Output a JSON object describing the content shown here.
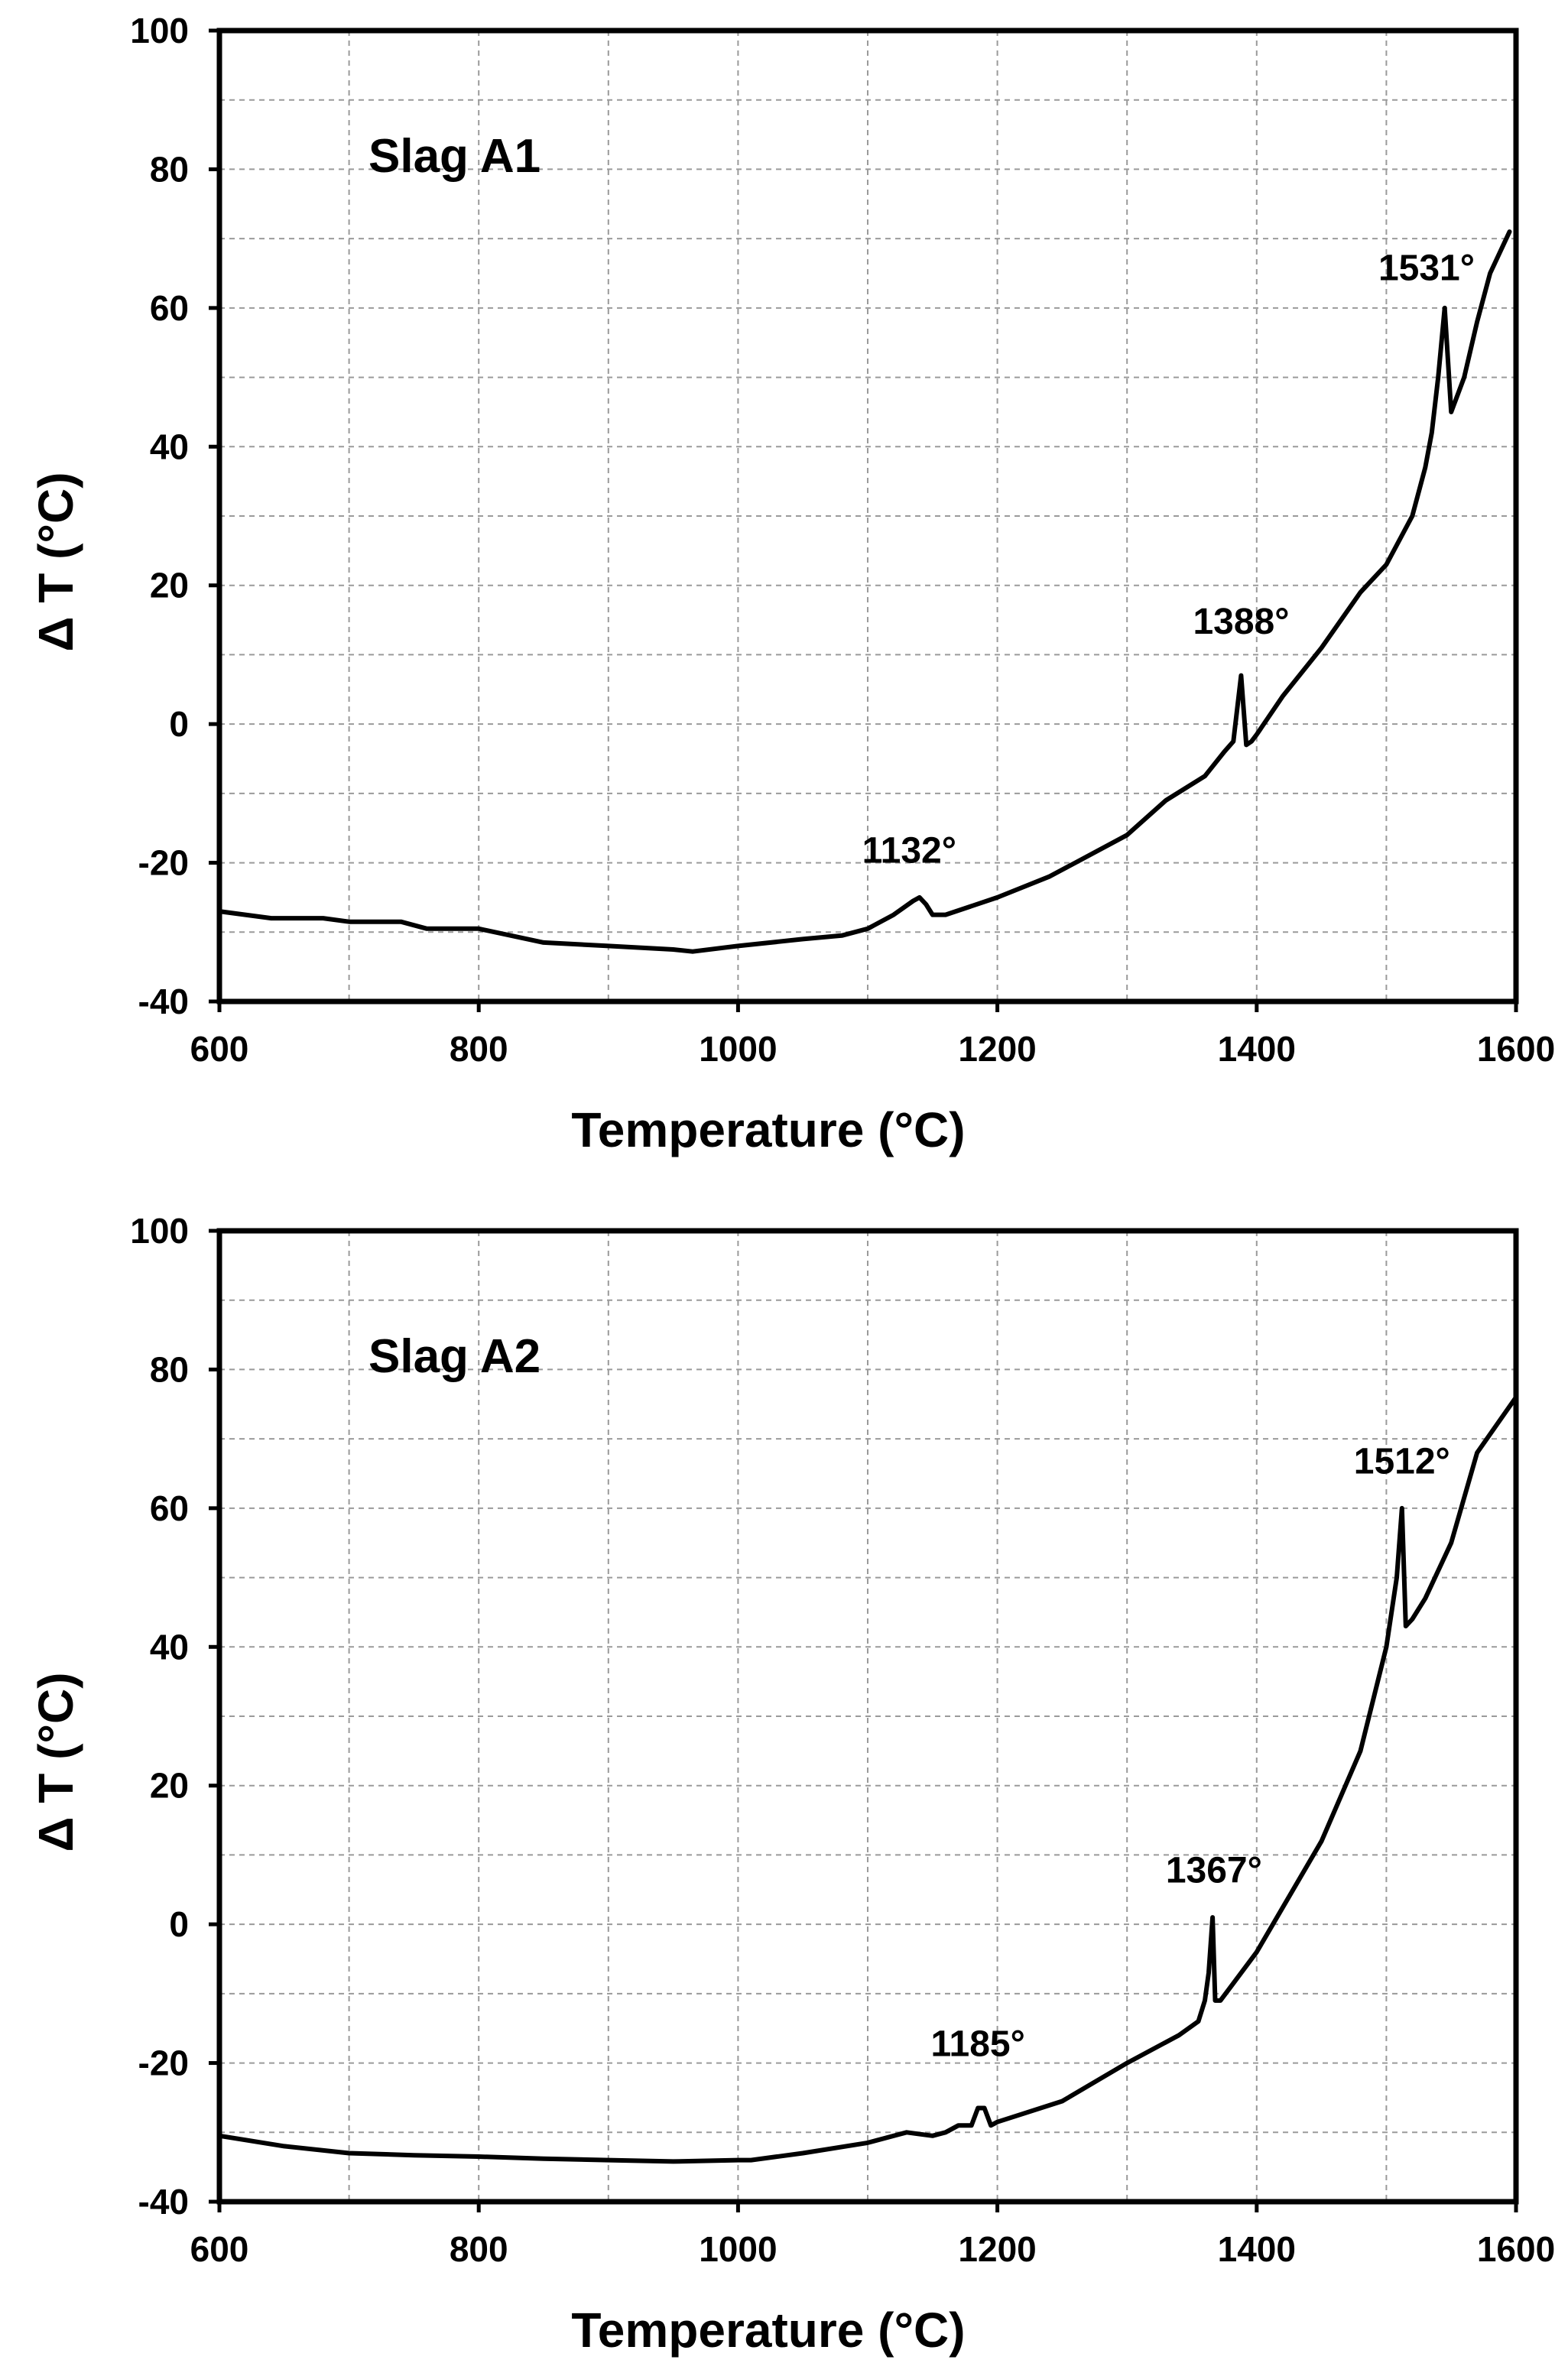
{
  "chart_data": [
    {
      "type": "line",
      "title": "Slag A1",
      "xlabel": "Temperature (°C)",
      "ylabel": "Δ T  (°C)",
      "xlim": [
        600,
        1600
      ],
      "ylim": [
        -40,
        100
      ],
      "xticks": [
        600,
        800,
        1000,
        1200,
        1400,
        1600
      ],
      "yticks": [
        -40,
        -20,
        0,
        20,
        40,
        60,
        80,
        100
      ],
      "grid": true,
      "series": [
        {
          "x": [
            600,
            640,
            680,
            700,
            740,
            760,
            800,
            850,
            900,
            950,
            965,
            1000,
            1050,
            1080,
            1100,
            1120,
            1135,
            1140,
            1145,
            1150,
            1160,
            1200,
            1240,
            1260,
            1300,
            1330,
            1360,
            1375,
            1382,
            1388,
            1392,
            1396,
            1400,
            1420,
            1450,
            1480,
            1500,
            1520,
            1530,
            1535,
            1540,
            1545,
            1550,
            1560,
            1570,
            1580,
            1595
          ],
          "y": [
            -27,
            -28,
            -28,
            -28.5,
            -28.5,
            -29.5,
            -29.5,
            -31.5,
            -32,
            -32.5,
            -32.8,
            -32,
            -31,
            -30.5,
            -29.5,
            -27.5,
            -25.5,
            -25,
            -26,
            -27.5,
            -27.5,
            -25,
            -22,
            -20,
            -16,
            -11,
            -7.5,
            -4,
            -2.5,
            7,
            -3,
            -2.5,
            -1.5,
            4,
            11,
            19,
            23,
            30,
            37,
            42,
            50,
            60,
            45,
            50,
            58,
            65,
            71
          ]
        }
      ],
      "annotations": [
        {
          "text": "1132°",
          "x": 1132,
          "y": -20
        },
        {
          "text": "1388°",
          "x": 1388,
          "y": 13
        },
        {
          "text": "1531°",
          "x": 1531,
          "y": 64
        }
      ]
    },
    {
      "type": "line",
      "title": "Slag A2",
      "xlabel": "Temperature (°C)",
      "ylabel": "Δ T  (°C)",
      "xlim": [
        600,
        1600
      ],
      "ylim": [
        -40,
        100
      ],
      "xticks": [
        600,
        800,
        1000,
        1200,
        1400,
        1600
      ],
      "yticks": [
        -40,
        -20,
        0,
        20,
        40,
        60,
        80,
        100
      ],
      "grid": true,
      "series": [
        {
          "x": [
            600,
            650,
            700,
            750,
            800,
            850,
            900,
            950,
            1000,
            1010,
            1050,
            1100,
            1130,
            1150,
            1160,
            1170,
            1180,
            1185,
            1190,
            1195,
            1200,
            1250,
            1300,
            1340,
            1355,
            1360,
            1363,
            1366,
            1368,
            1372,
            1380,
            1400,
            1450,
            1480,
            1500,
            1508,
            1512,
            1515,
            1520,
            1530,
            1550,
            1570,
            1600
          ],
          "y": [
            -30.5,
            -32,
            -33,
            -33.3,
            -33.5,
            -33.8,
            -34,
            -34.2,
            -34,
            -34,
            -33,
            -31.5,
            -30,
            -30.5,
            -30,
            -29,
            -29,
            -26.5,
            -26.5,
            -29,
            -28.5,
            -25.5,
            -20,
            -16,
            -14,
            -11,
            -7,
            1,
            -11,
            -11,
            -9,
            -4,
            12,
            25,
            40,
            50,
            60,
            43,
            44,
            47,
            55,
            68,
            76
          ]
        }
      ],
      "annotations": [
        {
          "text": "1185°",
          "x": 1185,
          "y": -19
        },
        {
          "text": "1367°",
          "x": 1367,
          "y": 6
        },
        {
          "text": "1512°",
          "x": 1512,
          "y": 65
        }
      ]
    }
  ]
}
